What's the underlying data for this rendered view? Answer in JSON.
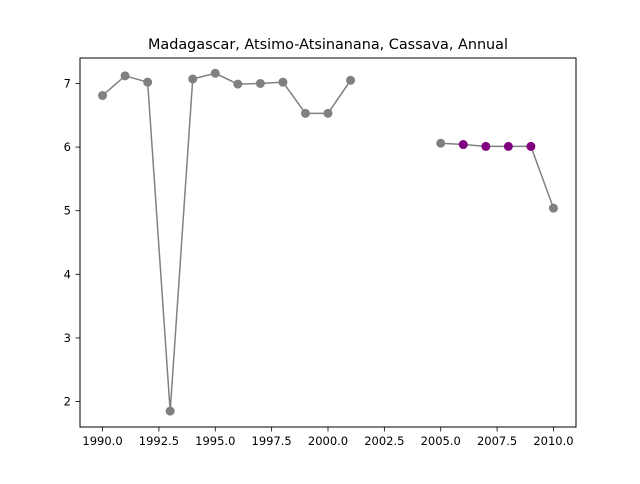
{
  "chart_data": {
    "type": "line",
    "title": "Madagascar, Atsimo-Atsinanana, Cassava, Annual",
    "xlabel": "",
    "ylabel": "",
    "xlim": [
      1989.0,
      2011.0
    ],
    "ylim": [
      1.6,
      7.4
    ],
    "x_ticks": [
      1990.0,
      1992.5,
      1995.0,
      1997.5,
      2000.0,
      2002.5,
      2005.0,
      2007.5,
      2010.0
    ],
    "x_tick_labels": [
      "1990.0",
      "1992.5",
      "1995.0",
      "1997.5",
      "2000.0",
      "2002.5",
      "2005.0",
      "2007.5",
      "2010.0"
    ],
    "y_ticks": [
      2,
      3,
      4,
      5,
      6,
      7
    ],
    "y_tick_labels": [
      "2",
      "3",
      "4",
      "5",
      "6",
      "7"
    ],
    "grid": false,
    "line_color": "#808080",
    "series": [
      {
        "values": [
          {
            "x": 1990,
            "y": 6.81,
            "color": "#808080"
          },
          {
            "x": 1991,
            "y": 7.12,
            "color": "#808080"
          },
          {
            "x": 1992,
            "y": 7.02,
            "color": "#808080"
          },
          {
            "x": 1993,
            "y": 1.85,
            "color": "#808080"
          },
          {
            "x": 1994,
            "y": 7.07,
            "color": "#808080"
          },
          {
            "x": 1995,
            "y": 7.16,
            "color": "#808080"
          },
          {
            "x": 1996,
            "y": 6.99,
            "color": "#808080"
          },
          {
            "x": 1997,
            "y": 7.0,
            "color": "#808080"
          },
          {
            "x": 1998,
            "y": 7.02,
            "color": "#808080"
          },
          {
            "x": 1999,
            "y": 6.53,
            "color": "#808080"
          },
          {
            "x": 2000,
            "y": 6.53,
            "color": "#808080"
          },
          {
            "x": 2001,
            "y": 7.05,
            "color": "#808080"
          }
        ]
      },
      {
        "values": [
          {
            "x": 2005,
            "y": 6.06,
            "color": "#808080"
          },
          {
            "x": 2006,
            "y": 6.04,
            "color": "#800080"
          },
          {
            "x": 2007,
            "y": 6.01,
            "color": "#800080"
          },
          {
            "x": 2008,
            "y": 6.01,
            "color": "#800080"
          },
          {
            "x": 2009,
            "y": 6.01,
            "color": "#800080"
          },
          {
            "x": 2010,
            "y": 5.04,
            "color": "#808080"
          }
        ]
      }
    ]
  }
}
